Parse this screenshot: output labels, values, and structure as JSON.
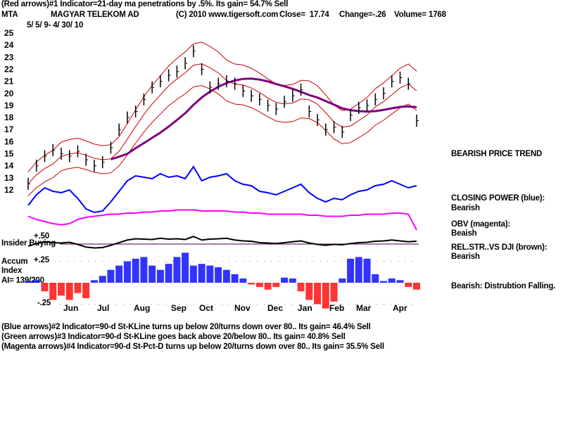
{
  "header": {
    "line1": "(Red arrows)#1 Indicator=21-day ma penetrations by .5%. Its gain= 54.7% Sell",
    "symbol": "MTA",
    "company": "MAGYAR TELEKOM AD",
    "copyright": "(C) 2010 www.tigersoft.com",
    "close": "Close=  17.74",
    "change": "Change=-.26",
    "volume": "Volume= 1768",
    "date_range": "5/ 5/ 9- 4/ 30/ 10"
  },
  "right_labels": {
    "trend": "BEARISH PRICE TREND",
    "cp_title": "CLOSING POWER (blue):",
    "cp_value": "Bearish",
    "obv_title": "OBV (magenta):",
    "obv_value": "Beaish",
    "rs_title": "REL.STR..VS DJI (brown):",
    "rs_value": "Bearish",
    "ai_note": "Bearish: Distrubtion Falling."
  },
  "lower_labels": {
    "plus50": "+.50",
    "insider": "Insider Buying",
    "plus25": "+.25",
    "accum1": "Accum",
    "accum2": "Index",
    "ai": "AI= 139/200",
    "minus25": "-.25"
  },
  "footer": [
    "(Blue arrows)#2 Indicator=90-d St-KLine turns up below 20/turns down over 80.. Its gain= 46.4% Sell",
    "(Green arrows)#3 Indicator=90-d St-KLine goes back above 20/below 80.. Its gain= 40.8% Sell",
    "(Magenta arrows)#4 Indicator=90-d St-Pct-D turns up below 20/turns down over 80.. Its gain= 35.5% Sell"
  ],
  "colors": {
    "price": "#000000",
    "bands": "#cc0000",
    "ma": "#800080",
    "closing_power": "#0000ff",
    "obv": "#ff00ff",
    "accum_pos": "#0000ff",
    "accum_neg": "#ff0000"
  },
  "chart_data": {
    "type": "bar",
    "yticks": [
      "12",
      "13",
      "14",
      "15",
      "16",
      "17",
      "18",
      "19",
      "20",
      "21",
      "22",
      "23",
      "24",
      "25"
    ],
    "ylim": [
      12,
      25
    ],
    "months": [
      "Jun",
      "Jul",
      "Aug",
      "Sep",
      "Oct",
      "Nov",
      "Dec",
      "Jan",
      "Feb",
      "Mar",
      "Apr"
    ],
    "price_close": [
      12.5,
      14,
      14.8,
      15.3,
      15,
      14.8,
      15.2,
      14.5,
      14,
      14.3,
      15.5,
      17,
      18,
      18.5,
      19.5,
      20.5,
      21,
      21.5,
      21.8,
      22.5,
      23.5,
      22,
      20.5,
      20.8,
      21,
      20.8,
      20.2,
      19.8,
      19.5,
      19,
      18.7,
      19.3,
      19.8,
      20.3,
      18.5,
      17.8,
      17,
      17.2,
      16.8,
      18.2,
      18.8,
      19,
      19.5,
      20,
      21,
      21.3,
      20.8,
      17.74
    ],
    "closing_power": [
      20,
      35,
      45,
      40,
      38,
      42,
      30,
      15,
      10,
      12,
      25,
      40,
      55,
      62,
      60,
      58,
      65,
      60,
      62,
      58,
      75,
      55,
      60,
      62,
      65,
      55,
      50,
      48,
      40,
      38,
      35,
      40,
      45,
      50,
      38,
      30,
      25,
      30,
      28,
      35,
      40,
      42,
      48,
      50,
      55,
      50,
      45,
      48
    ],
    "obv": [
      15,
      12,
      10,
      8,
      7,
      8,
      12,
      14,
      15,
      16,
      17,
      17,
      18,
      18,
      19,
      19,
      20,
      20,
      21,
      21,
      21,
      20,
      20,
      20,
      20,
      19,
      19,
      18,
      18,
      17,
      17,
      17,
      17,
      17,
      16,
      16,
      15,
      15,
      15,
      16,
      16,
      17,
      17,
      17,
      18,
      18,
      17,
      2
    ],
    "accum_index": [
      0.02,
      0.03,
      -0.1,
      -0.2,
      -0.15,
      -0.2,
      -0.12,
      -0.18,
      0.03,
      0.08,
      0.15,
      0.2,
      0.25,
      0.28,
      0.3,
      0.2,
      0.15,
      0.22,
      0.3,
      0.35,
      0.2,
      0.22,
      0.2,
      0.18,
      0.15,
      0.1,
      0.05,
      -0.02,
      -0.05,
      -0.08,
      -0.05,
      0.06,
      0.05,
      -0.1,
      -0.2,
      -0.25,
      -0.3,
      -0.22,
      0.05,
      0.28,
      0.3,
      0.28,
      0.1,
      0.02,
      0.05,
      0.03,
      -0.05,
      -0.08
    ],
    "insider_line": 0.5,
    "accum_ylim": [
      -0.25,
      0.25
    ]
  }
}
